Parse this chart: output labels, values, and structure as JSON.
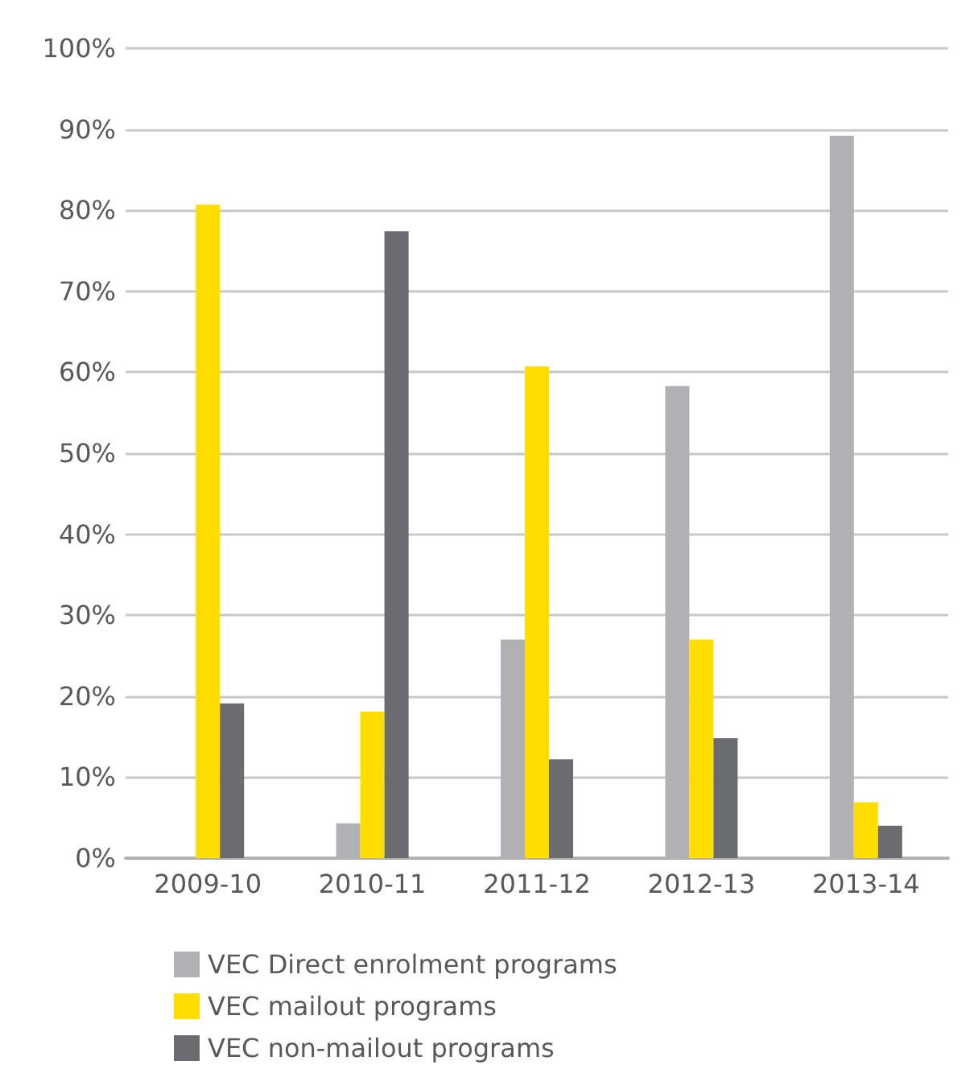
{
  "chart_data": {
    "type": "bar",
    "categories": [
      "2009-10",
      "2010-11",
      "2011-12",
      "2012-13",
      "2013-14"
    ],
    "series": [
      {
        "name": "VEC Direct enrolment programs",
        "color": "#b0b1b5",
        "values": [
          0,
          4.3,
          27.0,
          58.3,
          89.2
        ]
      },
      {
        "name": "VEC mailout programs",
        "color": "#ffdd00",
        "values": [
          80.7,
          18.1,
          60.7,
          27.0,
          6.9
        ]
      },
      {
        "name": "VEC non-mailout programs",
        "color": "#6b6c70",
        "values": [
          19.1,
          77.4,
          12.2,
          14.8,
          4.0
        ]
      }
    ],
    "ylim": [
      0,
      100
    ],
    "yticks": [
      {
        "value": 0,
        "label": "0%"
      },
      {
        "value": 10,
        "label": "10%"
      },
      {
        "value": 20,
        "label": "20%"
      },
      {
        "value": 30,
        "label": "30%"
      },
      {
        "value": 40,
        "label": "40%"
      },
      {
        "value": 50,
        "label": "50%"
      },
      {
        "value": 60,
        "label": "60%"
      },
      {
        "value": 70,
        "label": "70%"
      },
      {
        "value": 80,
        "label": "80%"
      },
      {
        "value": 90,
        "label": "90%"
      },
      {
        "value": 100,
        "label": "100%"
      }
    ],
    "grid": "y",
    "legend": "bottom left"
  }
}
